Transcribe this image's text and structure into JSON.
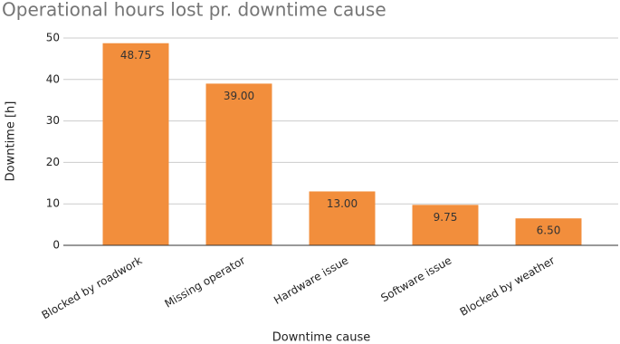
{
  "chart_data": {
    "type": "bar",
    "title": "Operational hours lost pr. downtime cause",
    "x_label": "Downtime cause",
    "y_label": "Downtime [h]",
    "categories": [
      "Blocked by roadwork",
      "Missing operator",
      "Hardware issue",
      "Software issue",
      "Blocked by weather"
    ],
    "values": [
      48.75,
      39,
      13,
      9.75,
      6.5
    ],
    "value_labels": [
      "48.75",
      "39.00",
      "13.00",
      "9.75",
      "6.50"
    ],
    "color": "#f28e3c",
    "ylim": [
      0,
      50
    ],
    "yticks": [
      0,
      10,
      20,
      30,
      40,
      50
    ],
    "grid": true
  }
}
